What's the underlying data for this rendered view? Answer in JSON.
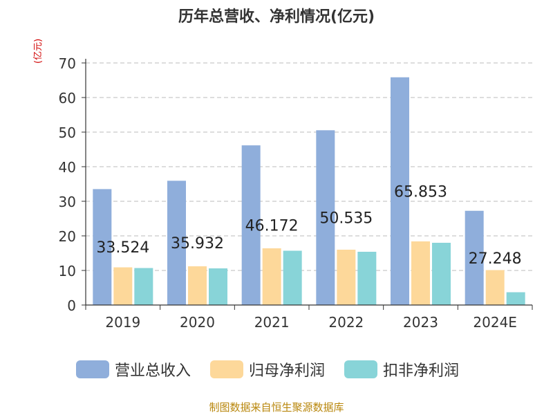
{
  "chart_data": {
    "type": "bar",
    "title": "历年总营收、净利情况(亿元)",
    "ylabel": "(亿元)",
    "ylim": [
      0,
      70
    ],
    "yticks": [
      0,
      10,
      20,
      30,
      40,
      50,
      60,
      70
    ],
    "grid": true,
    "legend": "bottom",
    "categories": [
      "2019",
      "2020",
      "2021",
      "2022",
      "2023",
      "2024E"
    ],
    "series": [
      {
        "name": "营业总收入",
        "color": "#8faedb",
        "values": [
          33.524,
          35.932,
          46.172,
          50.535,
          65.853,
          27.248
        ]
      },
      {
        "name": "归母净利润",
        "color": "#fdd89a",
        "values": [
          10.9,
          11.2,
          16.4,
          16.0,
          18.4,
          10.1
        ]
      },
      {
        "name": "扣非净利润",
        "color": "#88d4d8",
        "values": [
          10.7,
          10.6,
          15.7,
          15.4,
          18.0,
          3.7
        ]
      }
    ],
    "data_labels": [
      "33.524",
      "35.932",
      "46.172",
      "50.535",
      "65.853",
      "27.248"
    ],
    "source": "制图数据来自恒生聚源数据库"
  }
}
